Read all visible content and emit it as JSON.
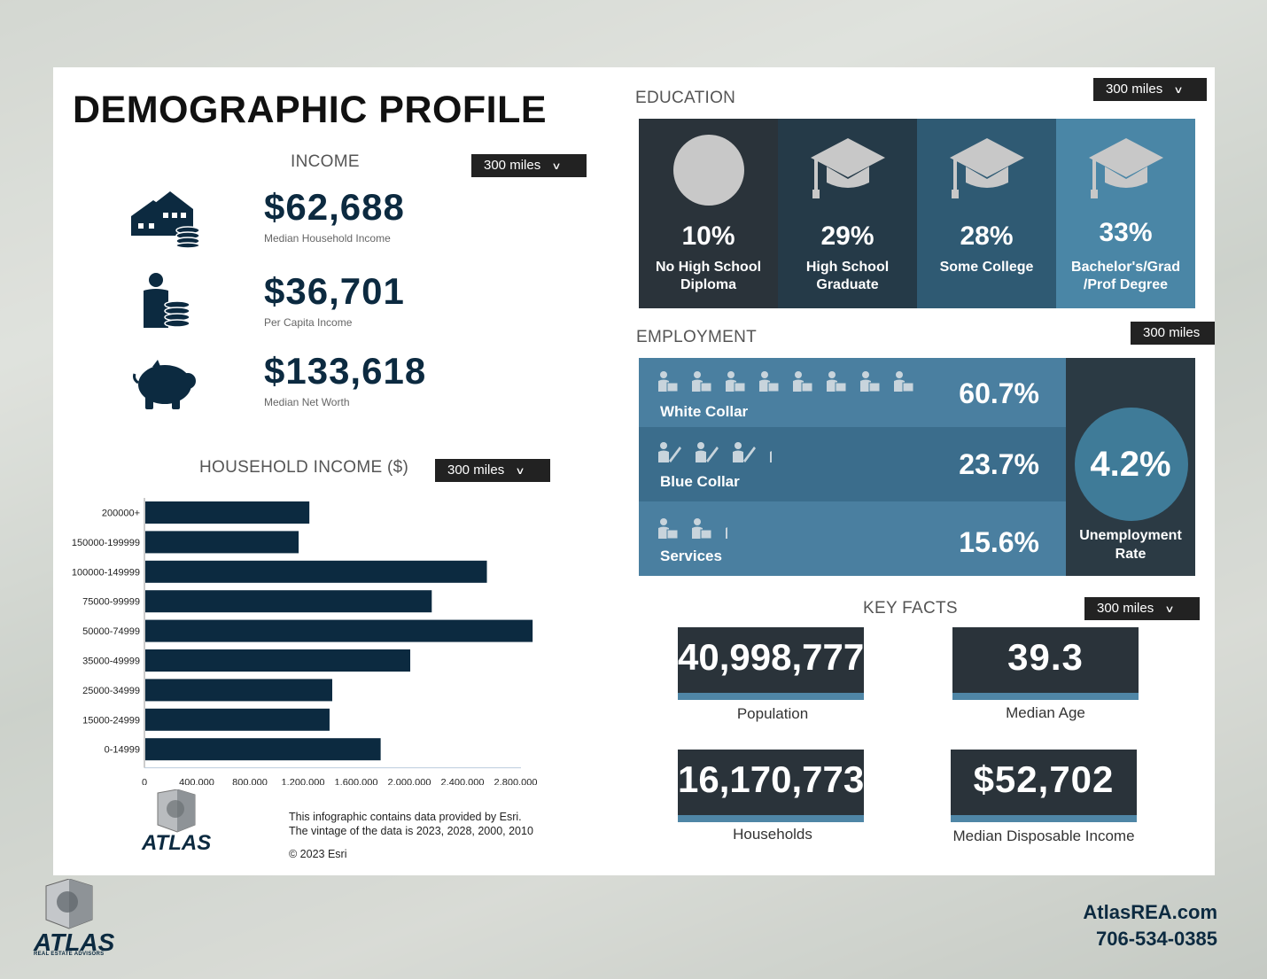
{
  "title": "DEMOGRAPHIC PROFILE",
  "dropdown_label": "300 miles",
  "income": {
    "section": "INCOME",
    "items": [
      {
        "value": "$62,688",
        "label": "Median Household Income",
        "icon": "house-coins-icon"
      },
      {
        "value": "$36,701",
        "label": "Per Capita Income",
        "icon": "person-coins-icon"
      },
      {
        "value": "$133,618",
        "label": "Median Net Worth",
        "icon": "piggy-bank-icon"
      }
    ]
  },
  "household_income": {
    "section": "HOUSEHOLD INCOME ($)"
  },
  "chart_data": {
    "type": "bar",
    "orientation": "horizontal",
    "categories": [
      "200000+",
      "150000-199999",
      "100000-149999",
      "75000-99999",
      "50000-74999",
      "35000-49999",
      "25000-34999",
      "15000-24999",
      "0-14999"
    ],
    "values": [
      1220000,
      1140000,
      2540000,
      2130000,
      2880000,
      1970000,
      1390000,
      1370000,
      1750000
    ],
    "x_ticks": [
      "0",
      "400,000",
      "800,000",
      "1,200,000",
      "1,600,000",
      "2,000,000",
      "2,400,000",
      "2,800,000"
    ],
    "xlim": [
      0,
      2800000
    ],
    "bar_color": "#0c2a40"
  },
  "footer_note": {
    "line1": "This infographic contains data provided by Esri.",
    "line2": "The vintage of the data is 2023, 2028, 2000, 2010",
    "line3": "© 2023 Esri"
  },
  "education": {
    "section": "EDUCATION",
    "items": [
      {
        "pct": "10%",
        "label1": "No High School",
        "label2": "Diploma",
        "color": "#2a333a",
        "icon": "circle-icon"
      },
      {
        "pct": "29%",
        "label1": "High School",
        "label2": "Graduate",
        "color": "#253a48",
        "icon": "graduation-cap-icon"
      },
      {
        "pct": "28%",
        "label1": "Some College",
        "label2": "",
        "color": "#2f5a73",
        "icon": "graduation-cap-icon"
      },
      {
        "pct": "33%",
        "label1": "Bachelor's/Grad",
        "label2": "/Prof Degree",
        "color": "#4a86a6",
        "icon": "graduation-cap-icon"
      }
    ]
  },
  "employment": {
    "section": "EMPLOYMENT",
    "rows": [
      {
        "label": "White Collar",
        "pct": "60.7%",
        "color": "#4a7fa0"
      },
      {
        "label": "Blue Collar",
        "pct": "23.7%",
        "color": "#3b6d8c"
      },
      {
        "label": "Services",
        "pct": "15.6%",
        "color": "#4a7fa0"
      }
    ],
    "unemployment": {
      "pct": "4.2%",
      "label1": "Unemployment",
      "label2": "Rate"
    }
  },
  "key_facts": {
    "section": "KEY FACTS",
    "items": [
      {
        "value": "40,998,777",
        "label": "Population"
      },
      {
        "value": "39.3",
        "label": "Median Age"
      },
      {
        "value": "16,170,773",
        "label": "Households"
      },
      {
        "value": "$52,702",
        "label": "Median Disposable Income"
      }
    ]
  },
  "brand": {
    "name": "ATLAS",
    "tagline": "REAL ESTATE ADVISORS",
    "website": "AtlasREA.com",
    "phone": "706-534-0385"
  }
}
